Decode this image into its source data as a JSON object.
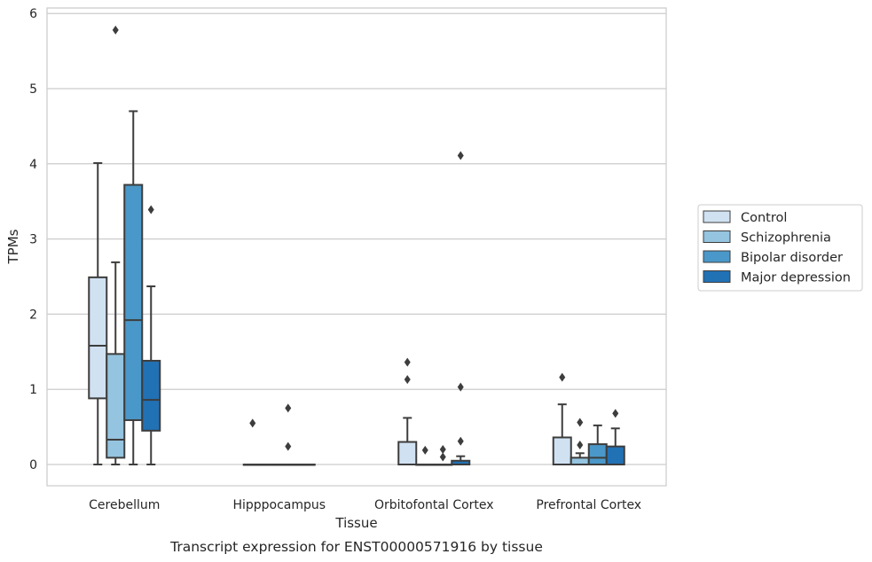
{
  "chart_data": {
    "type": "box",
    "title": "Transcript expression for ENST00000571916 by tissue",
    "xlabel": "Tissue",
    "ylabel": "TPMs",
    "ylim": [
      -0.28,
      6.1
    ],
    "yticks": [
      0,
      1,
      2,
      3,
      4,
      5,
      6
    ],
    "grid": true,
    "legend_position": "right",
    "categories": [
      "Cerebellum",
      "Hipppocampus",
      "Orbitofontal Cortex",
      "Prefrontal Cortex"
    ],
    "series": [
      {
        "name": "Control",
        "color": "#d0e1f2",
        "boxes": [
          {
            "whislo": 0,
            "q1": 0.88,
            "med": 1.58,
            "q3": 2.49,
            "whishi": 4.01,
            "fliers": []
          },
          {
            "whislo": 0,
            "q1": 0,
            "med": 0,
            "q3": 0,
            "whishi": 0,
            "fliers": [
              0.55
            ]
          },
          {
            "whislo": 0,
            "q1": 0,
            "med": 0,
            "q3": 0.3,
            "whishi": 0.62,
            "fliers": [
              1.13,
              1.36
            ]
          },
          {
            "whislo": 0,
            "q1": 0,
            "med": 0,
            "q3": 0.36,
            "whishi": 0.8,
            "fliers": [
              1.16
            ]
          }
        ]
      },
      {
        "name": "Schizophrenia",
        "color": "#94c4df",
        "boxes": [
          {
            "whislo": 0,
            "q1": 0.09,
            "med": 0.33,
            "q3": 1.47,
            "whishi": 2.69,
            "fliers": [
              5.78
            ]
          },
          {
            "whislo": 0,
            "q1": 0,
            "med": 0,
            "q3": 0,
            "whishi": 0,
            "fliers": []
          },
          {
            "whislo": 0,
            "q1": 0,
            "med": 0,
            "q3": 0,
            "whishi": 0,
            "fliers": [
              0.19
            ]
          },
          {
            "whislo": 0,
            "q1": 0,
            "med": 0,
            "q3": 0.09,
            "whishi": 0.15,
            "fliers": [
              0.26,
              0.56
            ]
          }
        ]
      },
      {
        "name": "Bipolar disorder",
        "color": "#4a98c9",
        "boxes": [
          {
            "whislo": 0,
            "q1": 0.59,
            "med": 1.92,
            "q3": 3.72,
            "whishi": 4.7,
            "fliers": []
          },
          {
            "whislo": 0,
            "q1": 0,
            "med": 0,
            "q3": 0,
            "whishi": 0,
            "fliers": [
              0.24,
              0.75
            ]
          },
          {
            "whislo": 0,
            "q1": 0,
            "med": 0,
            "q3": 0,
            "whishi": 0,
            "fliers": [
              0.1,
              0.2
            ]
          },
          {
            "whislo": 0,
            "q1": 0,
            "med": 0.09,
            "q3": 0.27,
            "whishi": 0.52,
            "fliers": []
          }
        ]
      },
      {
        "name": "Major depression",
        "color": "#2171b5",
        "boxes": [
          {
            "whislo": 0,
            "q1": 0.45,
            "med": 0.86,
            "q3": 1.38,
            "whishi": 2.37,
            "fliers": [
              3.39
            ]
          },
          {
            "whislo": 0,
            "q1": 0,
            "med": 0,
            "q3": 0,
            "whishi": 0,
            "fliers": []
          },
          {
            "whislo": 0,
            "q1": 0,
            "med": 0,
            "q3": 0.05,
            "whishi": 0.11,
            "fliers": [
              0.31,
              1.03,
              4.11
            ]
          },
          {
            "whislo": 0,
            "q1": 0,
            "med": 0,
            "q3": 0.24,
            "whishi": 0.48,
            "fliers": [
              0.68
            ]
          }
        ]
      }
    ]
  }
}
